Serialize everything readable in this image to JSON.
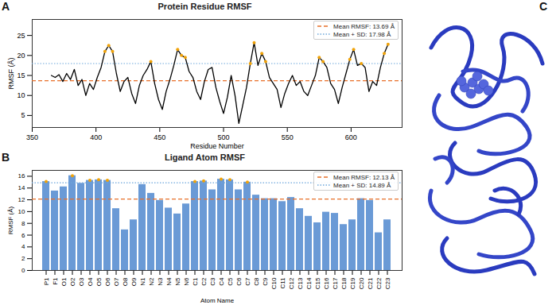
{
  "chart_data": [
    {
      "type": "line",
      "panel": "A",
      "title": "Protein Residue RMSF",
      "x_label": "Residue Number",
      "y_label": "RMSF (Å)",
      "x": [
        365,
        368,
        371,
        374,
        377,
        380,
        383,
        386,
        389,
        392,
        395,
        398,
        401,
        404,
        407,
        410,
        413,
        416,
        419,
        422,
        425,
        428,
        431,
        434,
        437,
        440,
        443,
        446,
        449,
        452,
        455,
        458,
        461,
        464,
        467,
        470,
        473,
        476,
        479,
        482,
        485,
        488,
        491,
        494,
        497,
        500,
        503,
        506,
        509,
        512,
        515,
        518,
        521,
        524,
        527,
        530,
        533,
        536,
        539,
        542,
        545,
        548,
        551,
        554,
        557,
        560,
        563,
        566,
        569,
        572,
        575,
        578,
        581,
        584,
        587,
        590,
        593,
        596,
        599,
        602,
        605,
        608,
        611,
        614,
        617,
        620,
        623,
        626,
        629
      ],
      "values": [
        15.0,
        14.5,
        15.2,
        13.5,
        15.5,
        14.0,
        16.5,
        12.5,
        14.0,
        10.0,
        13.0,
        11.5,
        14.5,
        17.0,
        21.0,
        22.5,
        21.0,
        15.5,
        11.0,
        13.5,
        14.5,
        10.5,
        8.0,
        12.5,
        15.0,
        16.5,
        18.5,
        13.0,
        9.0,
        6.5,
        11.0,
        14.0,
        17.5,
        21.5,
        20.0,
        19.5,
        16.0,
        14.5,
        11.0,
        9.0,
        13.5,
        16.5,
        17.0,
        12.0,
        8.5,
        5.5,
        9.5,
        15.0,
        10.0,
        3.0,
        7.5,
        12.0,
        18.0,
        23.2,
        17.5,
        20.5,
        18.5,
        14.5,
        13.0,
        11.5,
        7.0,
        10.5,
        13.0,
        15.0,
        12.5,
        13.5,
        11.0,
        10.0,
        12.5,
        15.0,
        19.5,
        18.5,
        17.0,
        13.0,
        11.5,
        8.0,
        12.0,
        15.5,
        19.0,
        21.5,
        17.5,
        18.0,
        17.0,
        11.0,
        13.5,
        12.5,
        17.0,
        20.5,
        22.8
      ],
      "color": "#000000",
      "xlim": [
        350,
        640
      ],
      "xticks": [
        350,
        400,
        450,
        500,
        550,
        600
      ],
      "ylim": [
        2,
        29
      ],
      "yticks": [
        5,
        10,
        15,
        20,
        25
      ],
      "reference_lines": [
        {
          "name": "Mean RMSF: 13.69 Å",
          "value": 13.69,
          "color": "#e8702a",
          "line_style": "dashed"
        },
        {
          "name": "Mean + SD: 17.98 Å",
          "value": 17.98,
          "color": "#6fa8dc",
          "line_style": "dotted"
        }
      ],
      "highlight": {
        "color": "#f0a30a",
        "marker": "circle"
      },
      "legend": "upper right",
      "grid": false
    },
    {
      "type": "bar",
      "panel": "B",
      "title": "Ligand Atom RMSF",
      "x_label": "Atom Name",
      "y_label": "RMSF (Å)",
      "categories": [
        "P1",
        "F1",
        "O1",
        "O2",
        "O3",
        "O4",
        "O5",
        "O6",
        "O7",
        "O8",
        "O9",
        "N1",
        "N2",
        "N3",
        "N4",
        "N5",
        "N6",
        "C1",
        "C2",
        "C3",
        "C4",
        "C5",
        "C6",
        "C7",
        "C8",
        "C9",
        "C10",
        "C11",
        "C12",
        "C13",
        "C14",
        "C15",
        "C16",
        "C17",
        "C18",
        "C19",
        "C20",
        "C21",
        "C22",
        "C23"
      ],
      "values": [
        15.1,
        13.5,
        14.2,
        16.1,
        14.8,
        15.3,
        15.4,
        15.3,
        10.5,
        6.9,
        8.6,
        14.6,
        13.1,
        11.9,
        10.6,
        9.6,
        11.3,
        15.1,
        15.2,
        13.7,
        15.5,
        15.4,
        13.7,
        15.0,
        12.8,
        12.2,
        12.2,
        11.7,
        12.4,
        10.5,
        9.2,
        8.1,
        9.9,
        9.7,
        7.8,
        8.6,
        12.2,
        11.9,
        6.4,
        8.6
      ],
      "color": "#6a9ad6",
      "ylim": [
        0,
        17
      ],
      "yticks": [
        0,
        2,
        4,
        6,
        8,
        10,
        12,
        14,
        16
      ],
      "reference_lines": [
        {
          "name": "Mean RMSF: 12.13 Å",
          "value": 12.13,
          "color": "#e8702a",
          "line_style": "dashed"
        },
        {
          "name": "Mean + SD: 14.89 Å",
          "value": 14.89,
          "color": "#6fa8dc",
          "line_style": "dotted"
        }
      ],
      "highlight": {
        "color": "#f0a30a",
        "marker": "circle"
      },
      "legend": "upper right",
      "grid": false
    }
  ],
  "image_panel": {
    "panel": "C"
  }
}
